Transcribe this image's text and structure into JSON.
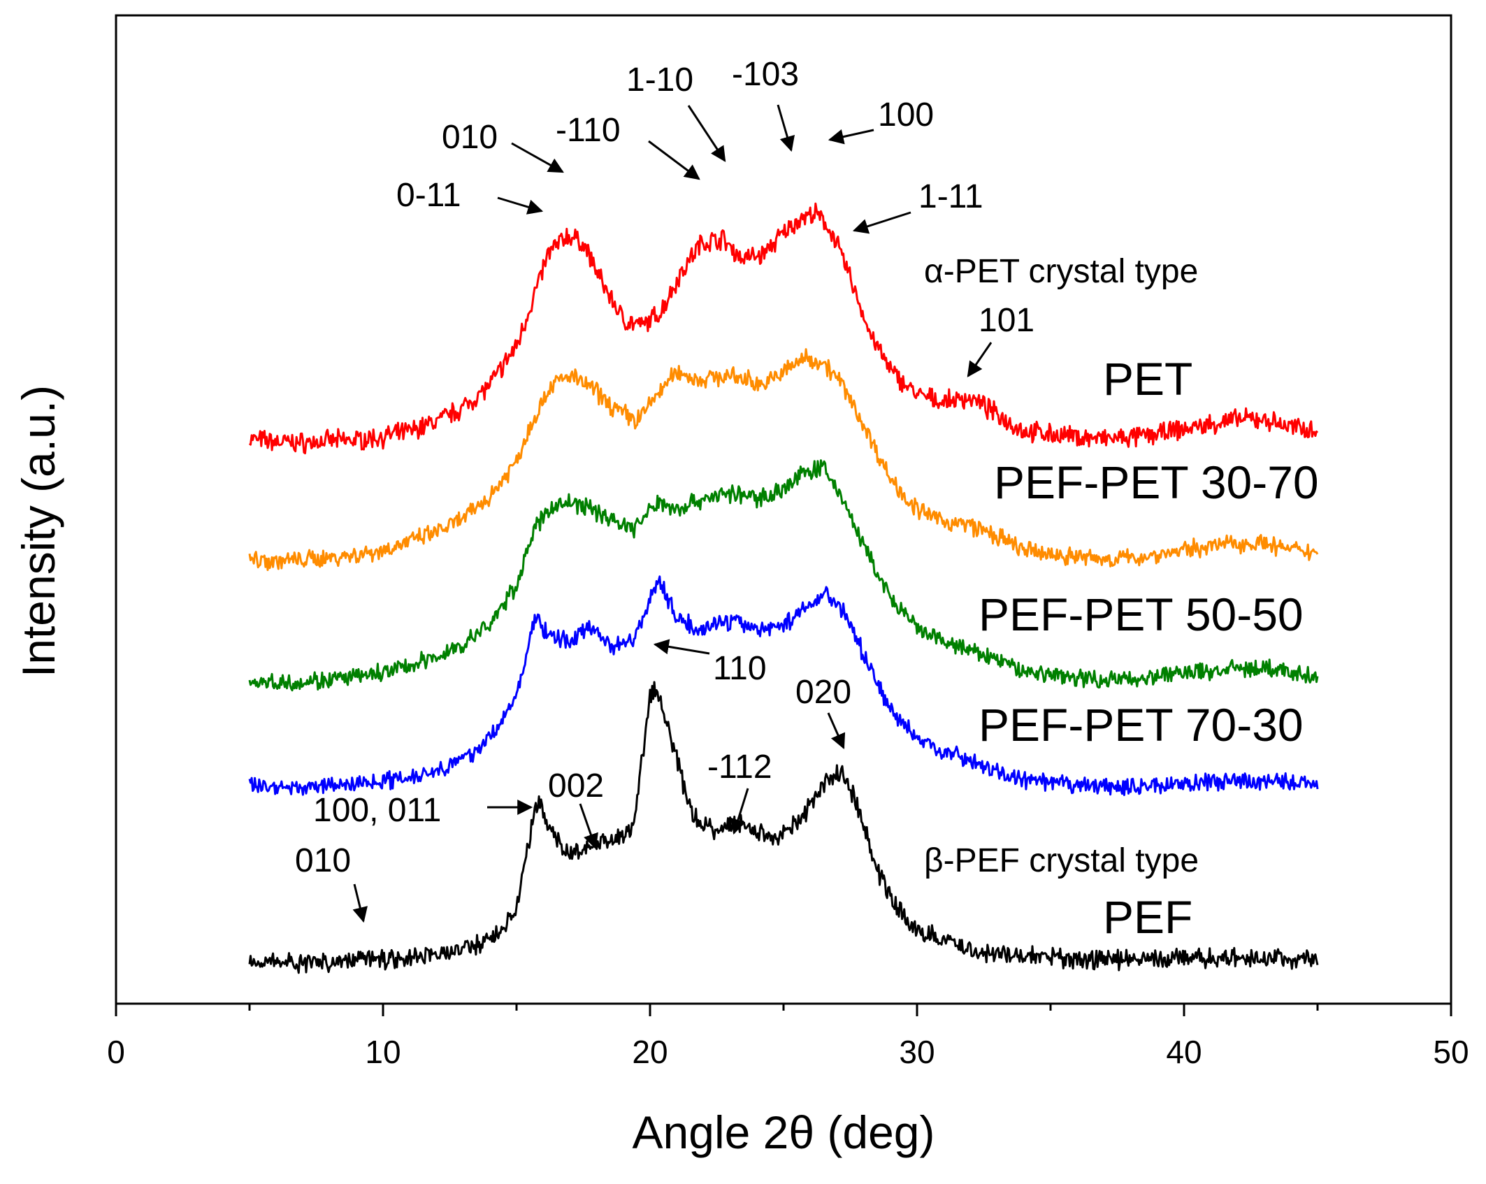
{
  "chart_data": {
    "type": "line",
    "xlabel": "Angle 2θ (deg)",
    "ylabel": "Intensity (a.u.)",
    "xlim": [
      0,
      50
    ],
    "xticks": [
      "0",
      "10",
      "20",
      "30",
      "40",
      "50"
    ],
    "y_ticks_shown": false,
    "grid": false,
    "legend": "none (series labelled inline at right of each curve)",
    "series": [
      {
        "name": "PET",
        "color": "#ff0000",
        "points": [
          [
            5,
            1.0
          ],
          [
            6,
            0.97
          ],
          [
            7,
            0.96
          ],
          [
            8,
            0.98
          ],
          [
            9,
            0.99
          ],
          [
            10,
            1.02
          ],
          [
            11,
            1.08
          ],
          [
            12,
            1.18
          ],
          [
            13,
            1.32
          ],
          [
            14,
            1.55
          ],
          [
            15,
            1.95
          ],
          [
            15.6,
            2.42
          ],
          [
            16.2,
            2.9
          ],
          [
            16.9,
            3.08
          ],
          [
            17.5,
            3.0
          ],
          [
            18.2,
            2.6
          ],
          [
            19,
            2.22
          ],
          [
            19.7,
            2.15
          ],
          [
            20.4,
            2.3
          ],
          [
            21.2,
            2.72
          ],
          [
            21.9,
            3.0
          ],
          [
            22.7,
            3.05
          ],
          [
            23.4,
            2.85
          ],
          [
            24.2,
            2.88
          ],
          [
            25,
            3.1
          ],
          [
            25.6,
            3.25
          ],
          [
            26.2,
            3.3
          ],
          [
            26.8,
            3.12
          ],
          [
            27.5,
            2.65
          ],
          [
            28.2,
            2.1
          ],
          [
            29,
            1.7
          ],
          [
            30,
            1.45
          ],
          [
            31,
            1.38
          ],
          [
            32,
            1.42
          ],
          [
            33,
            1.25
          ],
          [
            34,
            1.08
          ],
          [
            35,
            1.05
          ],
          [
            36,
            1.02
          ],
          [
            37,
            1.0
          ],
          [
            38,
            1.01
          ],
          [
            39,
            1.05
          ],
          [
            40,
            1.1
          ],
          [
            41,
            1.15
          ],
          [
            42,
            1.2
          ],
          [
            43,
            1.2
          ],
          [
            44,
            1.12
          ],
          [
            45,
            1.1
          ]
        ]
      },
      {
        "name": "PEF-PET 30-70",
        "color": "#ff8c00",
        "points": [
          [
            5,
            1.0
          ],
          [
            6,
            0.98
          ],
          [
            7,
            0.99
          ],
          [
            8,
            1.02
          ],
          [
            9,
            1.05
          ],
          [
            10,
            1.1
          ],
          [
            11,
            1.2
          ],
          [
            12,
            1.3
          ],
          [
            13,
            1.45
          ],
          [
            14,
            1.7
          ],
          [
            15,
            2.1
          ],
          [
            15.6,
            2.55
          ],
          [
            16.3,
            2.95
          ],
          [
            17,
            3.05
          ],
          [
            17.8,
            2.92
          ],
          [
            18.6,
            2.7
          ],
          [
            19.5,
            2.55
          ],
          [
            20.3,
            2.85
          ],
          [
            21,
            3.1
          ],
          [
            21.8,
            3.0
          ],
          [
            22.7,
            3.05
          ],
          [
            23.5,
            3.02
          ],
          [
            24.3,
            2.95
          ],
          [
            25,
            3.1
          ],
          [
            25.8,
            3.25
          ],
          [
            26.5,
            3.2
          ],
          [
            27.2,
            2.95
          ],
          [
            28,
            2.5
          ],
          [
            29,
            1.9
          ],
          [
            30,
            1.55
          ],
          [
            31,
            1.42
          ],
          [
            32,
            1.38
          ],
          [
            33,
            1.25
          ],
          [
            34,
            1.1
          ],
          [
            35,
            1.05
          ],
          [
            36,
            1.03
          ],
          [
            37,
            1.0
          ],
          [
            38,
            1.01
          ],
          [
            39,
            1.05
          ],
          [
            40,
            1.1
          ],
          [
            41,
            1.15
          ],
          [
            42,
            1.18
          ],
          [
            43,
            1.18
          ],
          [
            44,
            1.1
          ],
          [
            45,
            1.08
          ]
        ]
      },
      {
        "name": "PEF-PET 50-50",
        "color": "#008000",
        "points": [
          [
            5,
            1.0
          ],
          [
            6,
            0.99
          ],
          [
            7,
            1.0
          ],
          [
            8,
            1.02
          ],
          [
            9,
            1.05
          ],
          [
            10,
            1.1
          ],
          [
            11,
            1.18
          ],
          [
            12,
            1.28
          ],
          [
            13,
            1.42
          ],
          [
            14,
            1.65
          ],
          [
            15,
            2.1
          ],
          [
            15.6,
            2.7
          ],
          [
            16.3,
            3.0
          ],
          [
            17,
            3.05
          ],
          [
            17.8,
            2.98
          ],
          [
            18.6,
            2.85
          ],
          [
            19.4,
            2.75
          ],
          [
            20.3,
            3.05
          ],
          [
            21.1,
            2.98
          ],
          [
            22,
            3.1
          ],
          [
            23,
            3.15
          ],
          [
            24,
            3.1
          ],
          [
            25,
            3.2
          ],
          [
            25.8,
            3.4
          ],
          [
            26.5,
            3.45
          ],
          [
            27.2,
            3.1
          ],
          [
            28,
            2.55
          ],
          [
            29,
            1.95
          ],
          [
            30,
            1.6
          ],
          [
            31,
            1.45
          ],
          [
            32,
            1.35
          ],
          [
            33,
            1.25
          ],
          [
            34,
            1.12
          ],
          [
            35,
            1.08
          ],
          [
            36,
            1.05
          ],
          [
            37,
            1.02
          ],
          [
            38,
            1.03
          ],
          [
            39,
            1.06
          ],
          [
            40,
            1.1
          ],
          [
            41,
            1.12
          ],
          [
            42,
            1.15
          ],
          [
            43,
            1.15
          ],
          [
            44,
            1.1
          ],
          [
            45,
            1.05
          ]
        ]
      },
      {
        "name": "PEF-PET 70-30",
        "color": "#0000ff",
        "points": [
          [
            5,
            1.0
          ],
          [
            6,
            0.98
          ],
          [
            7,
            0.97
          ],
          [
            8,
            0.99
          ],
          [
            9,
            1.02
          ],
          [
            10,
            1.05
          ],
          [
            11,
            1.1
          ],
          [
            12,
            1.18
          ],
          [
            13,
            1.3
          ],
          [
            14,
            1.55
          ],
          [
            15,
            2.05
          ],
          [
            15.7,
            3.0
          ],
          [
            16.3,
            2.75
          ],
          [
            17,
            2.72
          ],
          [
            17.8,
            2.9
          ],
          [
            18.6,
            2.65
          ],
          [
            19.4,
            2.75
          ],
          [
            20.3,
            3.45
          ],
          [
            21,
            3.0
          ],
          [
            21.8,
            2.85
          ],
          [
            22.7,
            2.95
          ],
          [
            23.5,
            2.92
          ],
          [
            24.3,
            2.85
          ],
          [
            25.2,
            2.95
          ],
          [
            26,
            3.15
          ],
          [
            26.6,
            3.3
          ],
          [
            27.3,
            3.05
          ],
          [
            28,
            2.55
          ],
          [
            29,
            1.9
          ],
          [
            30,
            1.55
          ],
          [
            31,
            1.4
          ],
          [
            32,
            1.3
          ],
          [
            33,
            1.15
          ],
          [
            34,
            1.05
          ],
          [
            35,
            1.02
          ],
          [
            36,
            1.0
          ],
          [
            37,
            0.98
          ],
          [
            38,
            0.97
          ],
          [
            39,
            1.0
          ],
          [
            40,
            1.02
          ],
          [
            41,
            1.03
          ],
          [
            42,
            1.04
          ],
          [
            43,
            1.05
          ],
          [
            44,
            1.03
          ],
          [
            45,
            1.02
          ]
        ]
      },
      {
        "name": "PEF",
        "color": "#000000",
        "points": [
          [
            5,
            1.0
          ],
          [
            6,
            0.97
          ],
          [
            7,
            0.96
          ],
          [
            8,
            0.97
          ],
          [
            9,
            0.99
          ],
          [
            9.4,
            1.05
          ],
          [
            10,
            1.0
          ],
          [
            11,
            1.02
          ],
          [
            12,
            1.05
          ],
          [
            13,
            1.1
          ],
          [
            14,
            1.2
          ],
          [
            15,
            1.5
          ],
          [
            15.5,
            2.3
          ],
          [
            15.8,
            2.7
          ],
          [
            16.3,
            2.35
          ],
          [
            17,
            2.1
          ],
          [
            17.8,
            2.2
          ],
          [
            18.6,
            2.25
          ],
          [
            19.4,
            2.4
          ],
          [
            20,
            3.8
          ],
          [
            20.3,
            3.85
          ],
          [
            20.8,
            3.3
          ],
          [
            21.6,
            2.5
          ],
          [
            22.4,
            2.35
          ],
          [
            23.2,
            2.45
          ],
          [
            24,
            2.35
          ],
          [
            24.8,
            2.3
          ],
          [
            25.6,
            2.45
          ],
          [
            26.5,
            2.85
          ],
          [
            27.2,
            3.0
          ],
          [
            27.8,
            2.6
          ],
          [
            28.5,
            1.95
          ],
          [
            29.2,
            1.55
          ],
          [
            30,
            1.3
          ],
          [
            31,
            1.2
          ],
          [
            32,
            1.1
          ],
          [
            33,
            1.05
          ],
          [
            34,
            1.03
          ],
          [
            35,
            1.02
          ],
          [
            36,
            1.0
          ],
          [
            37,
            0.99
          ],
          [
            38,
            1.0
          ],
          [
            39,
            1.0
          ],
          [
            40,
            1.0
          ],
          [
            41,
            1.01
          ],
          [
            42,
            1.0
          ],
          [
            43,
            1.01
          ],
          [
            44,
            1.0
          ],
          [
            45,
            1.0
          ]
        ]
      }
    ],
    "series_labels": [
      "PET",
      "PEF-PET 30-70",
      "PEF-PET 50-50",
      "PEF-PET 70-30",
      "PEF"
    ],
    "annotations": {
      "alpha_type": "α-PET crystal type",
      "beta_type": "β-PEF crystal type",
      "pet_peaks": [
        "0-11",
        "010",
        "-110",
        "1-10",
        "-103",
        "100",
        "1-11",
        "101"
      ],
      "pef_peaks": [
        "010",
        "100, 011",
        "002",
        "110",
        "-112",
        "020"
      ]
    }
  }
}
